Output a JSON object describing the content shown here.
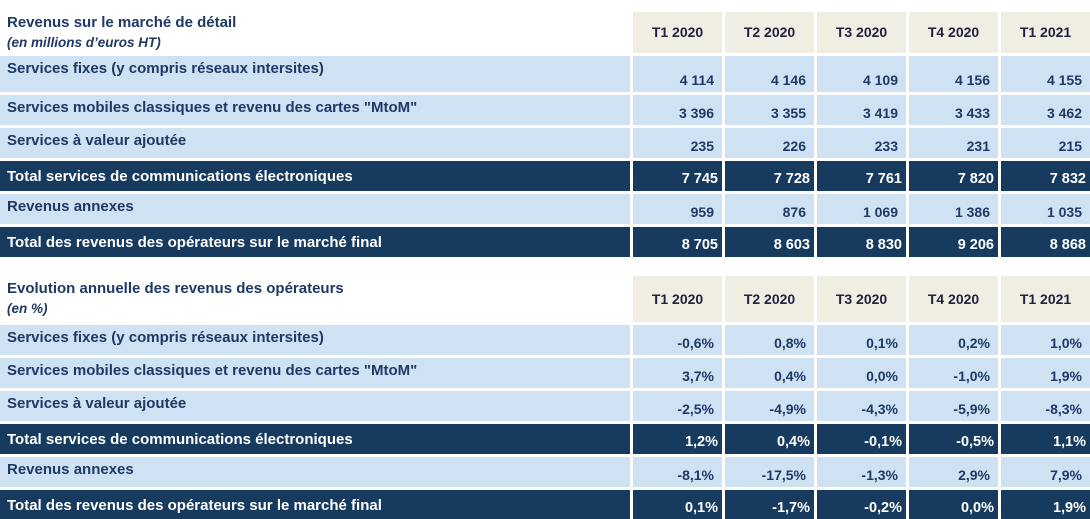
{
  "colors": {
    "header_fill": "#f0eee2",
    "row_fill": "#cfe2f3",
    "total_fill": "#173a5f",
    "label_text": "#1f3864",
    "number_text": "#1f3864",
    "header_text": "#241f3e",
    "total_text": "#ffffff",
    "page_bg": "#ffffff"
  },
  "chart_data": [
    {
      "type": "table",
      "title": "Revenus sur le marché de détail",
      "unit_note": "(en millions d’euros HT)",
      "columns": [
        "T1 2020",
        "T2 2020",
        "T3 2020",
        "T4 2020",
        "T1 2021"
      ],
      "rows": [
        {
          "label": "Services fixes (y compris réseaux intersites)",
          "type": "data",
          "values": [
            "4 114",
            "4 146",
            "4 109",
            "4 156",
            "4 155"
          ]
        },
        {
          "label": "Services mobiles classiques et revenu des cartes \"MtoM\"",
          "type": "data",
          "values": [
            "3 396",
            "3 355",
            "3 419",
            "3 433",
            "3 462"
          ]
        },
        {
          "label": "Services à valeur ajoutée",
          "type": "data",
          "values": [
            "235",
            "226",
            "233",
            "231",
            "215"
          ]
        },
        {
          "label": "Total services de communications électroniques",
          "type": "total",
          "values": [
            "7 745",
            "7 728",
            "7 761",
            "7 820",
            "7 832"
          ]
        },
        {
          "label": "Revenus annexes",
          "type": "data",
          "values": [
            "959",
            "876",
            "1 069",
            "1 386",
            "1 035"
          ]
        },
        {
          "label": "Total des revenus des opérateurs sur le marché final",
          "type": "total",
          "values": [
            "8 705",
            "8 603",
            "8 830",
            "9 206",
            "8 868"
          ]
        }
      ]
    },
    {
      "type": "table",
      "title": "Evolution annuelle des revenus des opérateurs",
      "unit_note": "(en %)",
      "columns": [
        "T1 2020",
        "T2 2020",
        "T3 2020",
        "T4 2020",
        "T1 2021"
      ],
      "rows": [
        {
          "label": "Services fixes (y compris réseaux intersites)",
          "type": "data",
          "values": [
            "-0,6%",
            "0,8%",
            "0,1%",
            "0,2%",
            "1,0%"
          ]
        },
        {
          "label": "Services mobiles classiques et revenu des cartes \"MtoM\"",
          "type": "data",
          "values": [
            "3,7%",
            "0,4%",
            "0,0%",
            "-1,0%",
            "1,9%"
          ]
        },
        {
          "label": "Services à valeur ajoutée",
          "type": "data",
          "values": [
            "-2,5%",
            "-4,9%",
            "-4,3%",
            "-5,9%",
            "-8,3%"
          ]
        },
        {
          "label": "Total services de communications électroniques",
          "type": "total",
          "values": [
            "1,2%",
            "0,4%",
            "-0,1%",
            "-0,5%",
            "1,1%"
          ]
        },
        {
          "label": "Revenus annexes",
          "type": "data",
          "values": [
            "-8,1%",
            "-17,5%",
            "-1,3%",
            "2,9%",
            "7,9%"
          ]
        },
        {
          "label": "Total des revenus des opérateurs sur le marché final",
          "type": "total",
          "values": [
            "0,1%",
            "-1,7%",
            "-0,2%",
            "0,0%",
            "1,9%"
          ]
        }
      ]
    }
  ]
}
